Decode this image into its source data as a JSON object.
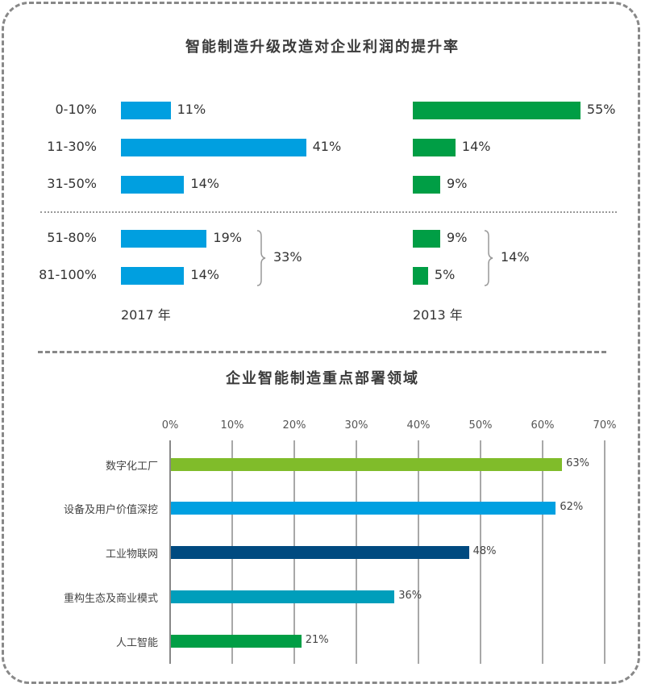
{
  "chart_data": [
    {
      "type": "bar",
      "orientation": "horizontal",
      "title": "智能制造升级改造对企业利润的提升率",
      "categories": [
        "0-10%",
        "11-30%",
        "31-50%",
        "51-80%",
        "81-100%"
      ],
      "series": [
        {
          "name": "2017年",
          "values": [
            11,
            41,
            14,
            19,
            14
          ],
          "color": "#009fe0",
          "labels": [
            "11%",
            "41%",
            "14%",
            "19%",
            "14%"
          ],
          "group_total_label": "33%",
          "year_label": "2017 年"
        },
        {
          "name": "2013年",
          "values": [
            55,
            14,
            9,
            9,
            5
          ],
          "color": "#009e45",
          "labels": [
            "55%",
            "14%",
            "9%",
            "9%",
            "5%"
          ],
          "group_total_label": "14%",
          "year_label": "2013 年"
        }
      ],
      "grouping": {
        "upper": [
          "0-10%",
          "11-30%",
          "31-50%"
        ],
        "lower_bracketed": [
          "51-80%",
          "81-100%"
        ]
      },
      "unit": "%"
    },
    {
      "type": "bar",
      "orientation": "horizontal",
      "title": "企业智能制造重点部署领域",
      "categories": [
        "数字化工厂",
        "设备及用户价值深挖",
        "工业物联网",
        "重构生态及商业模式",
        "人工智能"
      ],
      "values": [
        63,
        62,
        48,
        36,
        21
      ],
      "labels": [
        "63%",
        "62%",
        "48%",
        "36%",
        "21%"
      ],
      "colors": [
        "#80bc2a",
        "#00a0e1",
        "#004a80",
        "#009ebb",
        "#009e45"
      ],
      "xticks": [
        "0%",
        "10%",
        "20%",
        "30%",
        "40%",
        "50%",
        "60%",
        "70%"
      ],
      "xlim": [
        0,
        70
      ],
      "grid": true,
      "unit": "%"
    }
  ]
}
